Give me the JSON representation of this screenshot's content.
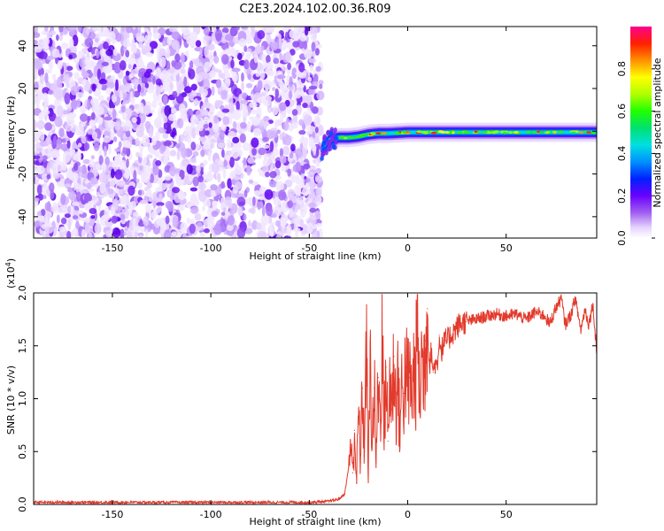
{
  "title": "C2E3.2024.102.00.36.R09",
  "chart_data": [
    {
      "type": "heatmap",
      "xlabel": "Height of straight line (km)",
      "ylabel": "Frequency (Hz)",
      "xlim": [
        -190,
        96
      ],
      "ylim": [
        -50,
        49
      ],
      "x_ticks": [
        -150,
        -100,
        -50,
        0,
        50
      ],
      "y_ticks": [
        -40,
        -20,
        0,
        20,
        40
      ],
      "noise_region_x": [
        -190,
        -44
      ],
      "signal_band": {
        "x_start": -44,
        "points": [
          {
            "x": -44,
            "y": -9
          },
          {
            "x": -40,
            "y": -4
          },
          {
            "x": -35,
            "y": -3
          },
          {
            "x": -30,
            "y": -3
          },
          {
            "x": -25,
            "y": -2.5
          },
          {
            "x": -20,
            "y": -1.5
          },
          {
            "x": -15,
            "y": -1
          },
          {
            "x": -10,
            "y": -1
          },
          {
            "x": 0,
            "y": -0.5
          },
          {
            "x": 10,
            "y": -0.5
          },
          {
            "x": 30,
            "y": -0.5
          },
          {
            "x": 60,
            "y": -0.5
          },
          {
            "x": 96,
            "y": -0.5
          }
        ]
      },
      "colorbar": {
        "label": "Normalized spectral amplitude",
        "range": [
          0.0,
          1.0
        ],
        "ticks": [
          "0.0",
          "0.2",
          "0.4",
          "0.6",
          "0.8"
        ]
      }
    },
    {
      "type": "line",
      "xlabel": "Height of straight line (km)",
      "ylabel": "SNR (10 * v/v)",
      "y_multiplier": "(x10",
      "y_multiplier_exp": "4",
      "y_multiplier_close": ")",
      "xlim": [
        -190,
        96
      ],
      "ylim": [
        0,
        2.0
      ],
      "x_ticks": [
        -150,
        -100,
        -50,
        0,
        50
      ],
      "y_ticks": [
        "0.0",
        "0.5",
        "1.0",
        "1.5",
        "2.0"
      ],
      "color": "#e23a2c",
      "series": [
        {
          "x": [
            -190,
            -150,
            -100,
            -50,
            -40,
            -35,
            -32,
            -30,
            -29,
            -28,
            -27,
            -26,
            -25,
            -24,
            -23,
            -22,
            -21,
            -20,
            -19,
            -18,
            -17,
            -16,
            -15,
            -14,
            -13,
            -12,
            -11,
            -10,
            -9,
            -8,
            -7,
            -6,
            -5,
            -4,
            -3,
            -2,
            -1,
            0,
            1,
            2,
            3,
            4,
            5,
            6,
            7,
            8,
            9,
            10,
            11,
            12,
            13,
            14,
            15,
            16,
            17,
            18,
            19,
            20,
            22,
            24,
            26,
            28,
            30,
            35,
            40,
            45,
            50,
            55,
            60,
            65,
            70,
            72,
            75,
            78,
            80,
            83,
            85,
            88,
            90,
            92,
            94,
            96
          ],
          "y": [
            0.02,
            0.02,
            0.02,
            0.02,
            0.03,
            0.05,
            0.1,
            0.35,
            0.6,
            0.3,
            0.7,
            0.2,
            0.9,
            0.4,
            1.1,
            0.5,
            1.55,
            0.3,
            1.3,
            0.6,
            1.1,
            0.4,
            1.2,
            0.8,
            1.58,
            0.7,
            1.3,
            0.6,
            1.25,
            0.9,
            1.4,
            0.9,
            1.2,
            0.7,
            1.1,
            1.05,
            1.3,
            1.1,
            1.2,
            1.0,
            1.25,
            1.15,
            1.8,
            0.95,
            1.4,
            1.2,
            1.55,
            1.85,
            1.3,
            1.45,
            1.25,
            1.35,
            1.3,
            1.6,
            1.45,
            1.5,
            1.55,
            1.55,
            1.6,
            1.65,
            1.7,
            1.72,
            1.73,
            1.75,
            1.78,
            1.8,
            1.78,
            1.8,
            1.75,
            1.82,
            1.78,
            1.7,
            1.85,
            1.95,
            1.7,
            1.8,
            1.95,
            1.65,
            1.85,
            1.7,
            1.9,
            1.45
          ]
        }
      ]
    }
  ]
}
